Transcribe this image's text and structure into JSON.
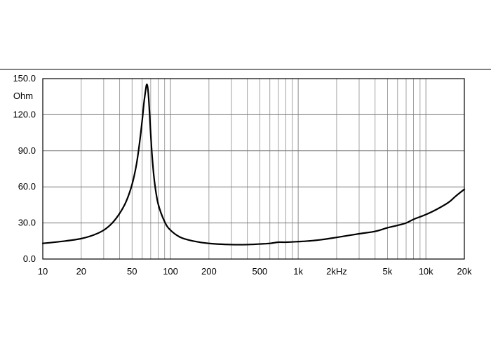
{
  "chart_data": {
    "type": "line",
    "title": "",
    "xlabel": "",
    "ylabel": "Ohm",
    "x_scale": "log",
    "xlim": [
      10,
      20000
    ],
    "ylim": [
      0,
      150
    ],
    "grid": true,
    "x_ticks": [
      {
        "value": 10,
        "label": "10"
      },
      {
        "value": 20,
        "label": "20"
      },
      {
        "value": 50,
        "label": "50"
      },
      {
        "value": 100,
        "label": "100"
      },
      {
        "value": 200,
        "label": "200"
      },
      {
        "value": 500,
        "label": "500"
      },
      {
        "value": 1000,
        "label": "1k"
      },
      {
        "value": 2000,
        "label": "2kHz"
      },
      {
        "value": 5000,
        "label": "5k"
      },
      {
        "value": 10000,
        "label": "10k"
      },
      {
        "value": 20000,
        "label": "20k"
      }
    ],
    "y_ticks": [
      {
        "value": 0,
        "label": "0.0"
      },
      {
        "value": 30,
        "label": "30.0"
      },
      {
        "value": 60,
        "label": "60.0"
      },
      {
        "value": 90,
        "label": "90.0"
      },
      {
        "value": 120,
        "label": "120.0"
      },
      {
        "value": 150,
        "label": "150.0"
      }
    ],
    "series": [
      {
        "line_color": "#000000",
        "x": [
          10,
          15,
          20,
          25,
          30,
          35,
          40,
          45,
          50,
          54,
          57,
          60,
          62,
          64,
          65,
          66,
          67,
          68,
          70,
          72,
          75,
          80,
          90,
          100,
          120,
          150,
          200,
          300,
          400,
          500,
          600,
          700,
          800,
          1000,
          1200,
          1500,
          2000,
          3000,
          4000,
          5000,
          6000,
          7000,
          8000,
          10000,
          12000,
          15000,
          17000,
          20000
        ],
        "values": [
          13,
          15,
          17,
          20,
          24,
          30,
          38,
          48,
          62,
          78,
          95,
          115,
          130,
          141,
          145,
          144,
          138,
          128,
          104,
          84,
          64,
          46,
          31,
          24,
          18,
          15,
          13,
          12,
          12,
          12.5,
          13,
          14,
          14,
          14.5,
          15,
          16,
          18,
          21,
          23,
          26,
          28,
          30,
          33,
          37,
          41,
          47,
          52,
          58
        ]
      }
    ]
  }
}
